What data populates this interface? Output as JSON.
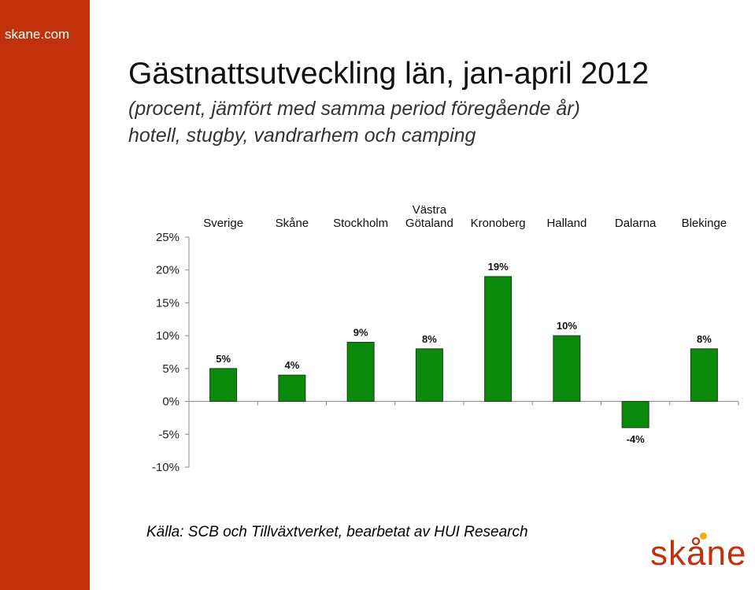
{
  "brand": {
    "site_label": "skane.com",
    "logo_text": "skåne",
    "sidebar_color": "#c1310b",
    "logo_dot_color": "#f2b10d"
  },
  "header": {
    "title": "Gästnattsutveckling län, jan-april 2012",
    "subtitle_line1": "(procent, jämfört med samma period föregående år)",
    "subtitle_line2": "hotell, stugby, vandrarhem och camping"
  },
  "chart_data": {
    "type": "bar",
    "categories": [
      [
        "Sverige"
      ],
      [
        "Skåne"
      ],
      [
        "Stockholm"
      ],
      [
        "Västra",
        "Götaland"
      ],
      [
        "Kronoberg"
      ],
      [
        "Halland"
      ],
      [
        "Dalarna"
      ],
      [
        "Blekinge"
      ]
    ],
    "values": [
      5,
      4,
      9,
      8,
      19,
      10,
      -4,
      8
    ],
    "data_labels": [
      "5%",
      "4%",
      "9%",
      "8%",
      "19%",
      "10%",
      "-4%",
      "8%"
    ],
    "y_ticks": [
      25,
      20,
      15,
      10,
      5,
      0,
      -5,
      -10
    ],
    "y_tick_labels": [
      "25%",
      "20%",
      "15%",
      "10%",
      "5%",
      "0%",
      "-5%",
      "-10%"
    ],
    "ylim": [
      -10,
      25
    ],
    "bar_color": "#0a8a0a",
    "bar_edge_color": "#1f3d1f",
    "grid": false,
    "legend": "none"
  },
  "footer": {
    "source": "Källa: SCB och Tillväxtverket, bearbetat av HUI Research"
  }
}
